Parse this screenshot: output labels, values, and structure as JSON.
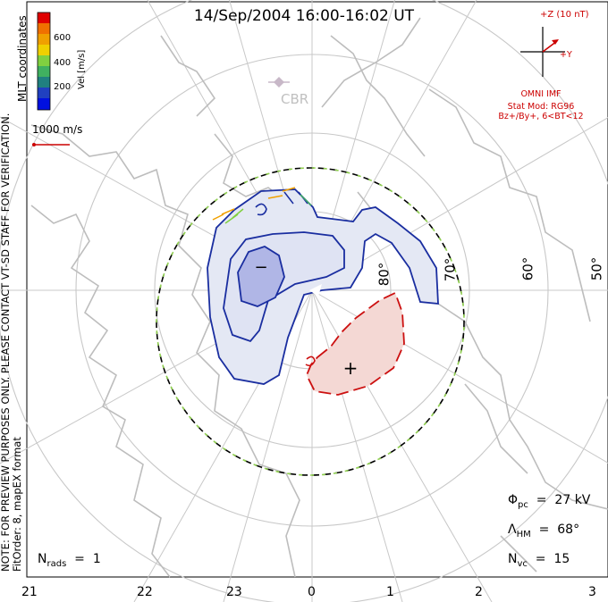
{
  "title": "14/Sep/2004 16:00-16:02 UT",
  "side_note_line1": "NOTE: FOR PREVIEW PURPOSES ONLY. PLEASE CONTACT VT-SD STAFF FOR VERIFICATION.",
  "side_note_line2": "FitOrder: 8, mapEX format",
  "coord_label": "MLT coordinates",
  "colorbar": {
    "label": "Vel [m/s]",
    "ticks": [
      "600",
      "400",
      "200"
    ],
    "colors": [
      "#e00000",
      "#f07000",
      "#f0a000",
      "#f0d000",
      "#80d040",
      "#40b060",
      "#208080",
      "#2040c0",
      "#0010e0"
    ]
  },
  "reference_vector": {
    "label": "1000 m/s",
    "color": "#cc0000"
  },
  "imf": {
    "z_label": "+Z (10 nT)",
    "y_label": "+Y",
    "source": "OMNI IMF",
    "model_line1": "Stat Mod: RG96",
    "model_line2": "Bz+/By+, 6<BT<12"
  },
  "station": "CBR",
  "latitude_labels": [
    "80°",
    "70°",
    "60°",
    "50°"
  ],
  "mlt_ticks": [
    "21",
    "22",
    "23",
    "0",
    "1",
    "2",
    "3"
  ],
  "cell_markers": {
    "negative": "−",
    "positive": "+"
  },
  "stats": {
    "phi_pc": "27",
    "phi_unit": "kV",
    "lambda_hm": "68°",
    "n_vc": "15",
    "n_rads": "1"
  },
  "colors": {
    "negative_cell_fill": "#e4e8f4",
    "negative_core_fill": "#b0b6e6",
    "negative_contour": "#1a2ea0",
    "positive_cell_fill": "#f4d8d4",
    "positive_contour": "#cc1010",
    "coastline": "#bdbdbd",
    "grid": "#c8c8c8",
    "boundary_dash": "#90d050"
  }
}
